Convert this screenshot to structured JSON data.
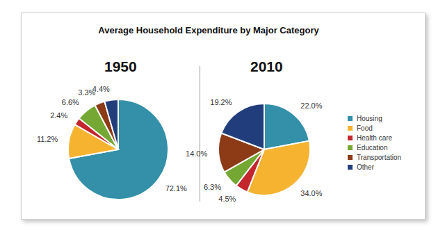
{
  "chart_data": [
    {
      "type": "pie",
      "title": "Average Household Expenditure by Major Category",
      "subtitle": "1950",
      "categories": [
        "Housing",
        "Food",
        "Health care",
        "Education",
        "Transportation",
        "Other"
      ],
      "values": [
        72.1,
        11.2,
        2.4,
        6.6,
        3.3,
        4.4
      ],
      "value_labels": [
        "72.1%",
        "11.2%",
        "2.4%",
        "6.6%",
        "3.3%",
        "4.4%"
      ],
      "colors": [
        "#3390a8",
        "#f5b330",
        "#c4262e",
        "#74a832",
        "#8c3b16",
        "#213d7b"
      ],
      "data_labels": true
    },
    {
      "type": "pie",
      "subtitle": "2010",
      "categories": [
        "Housing",
        "Food",
        "Health care",
        "Education",
        "Transportation",
        "Other"
      ],
      "values": [
        22.0,
        34.0,
        4.5,
        6.3,
        14.0,
        19.2
      ],
      "value_labels": [
        "22.0%",
        "34.0%",
        "4.5%",
        "6.3%",
        "14.0%",
        "19.2%"
      ],
      "colors": [
        "#3390a8",
        "#f5b330",
        "#c4262e",
        "#74a832",
        "#8c3b16",
        "#213d7b"
      ],
      "data_labels": true,
      "legend": "right"
    }
  ]
}
